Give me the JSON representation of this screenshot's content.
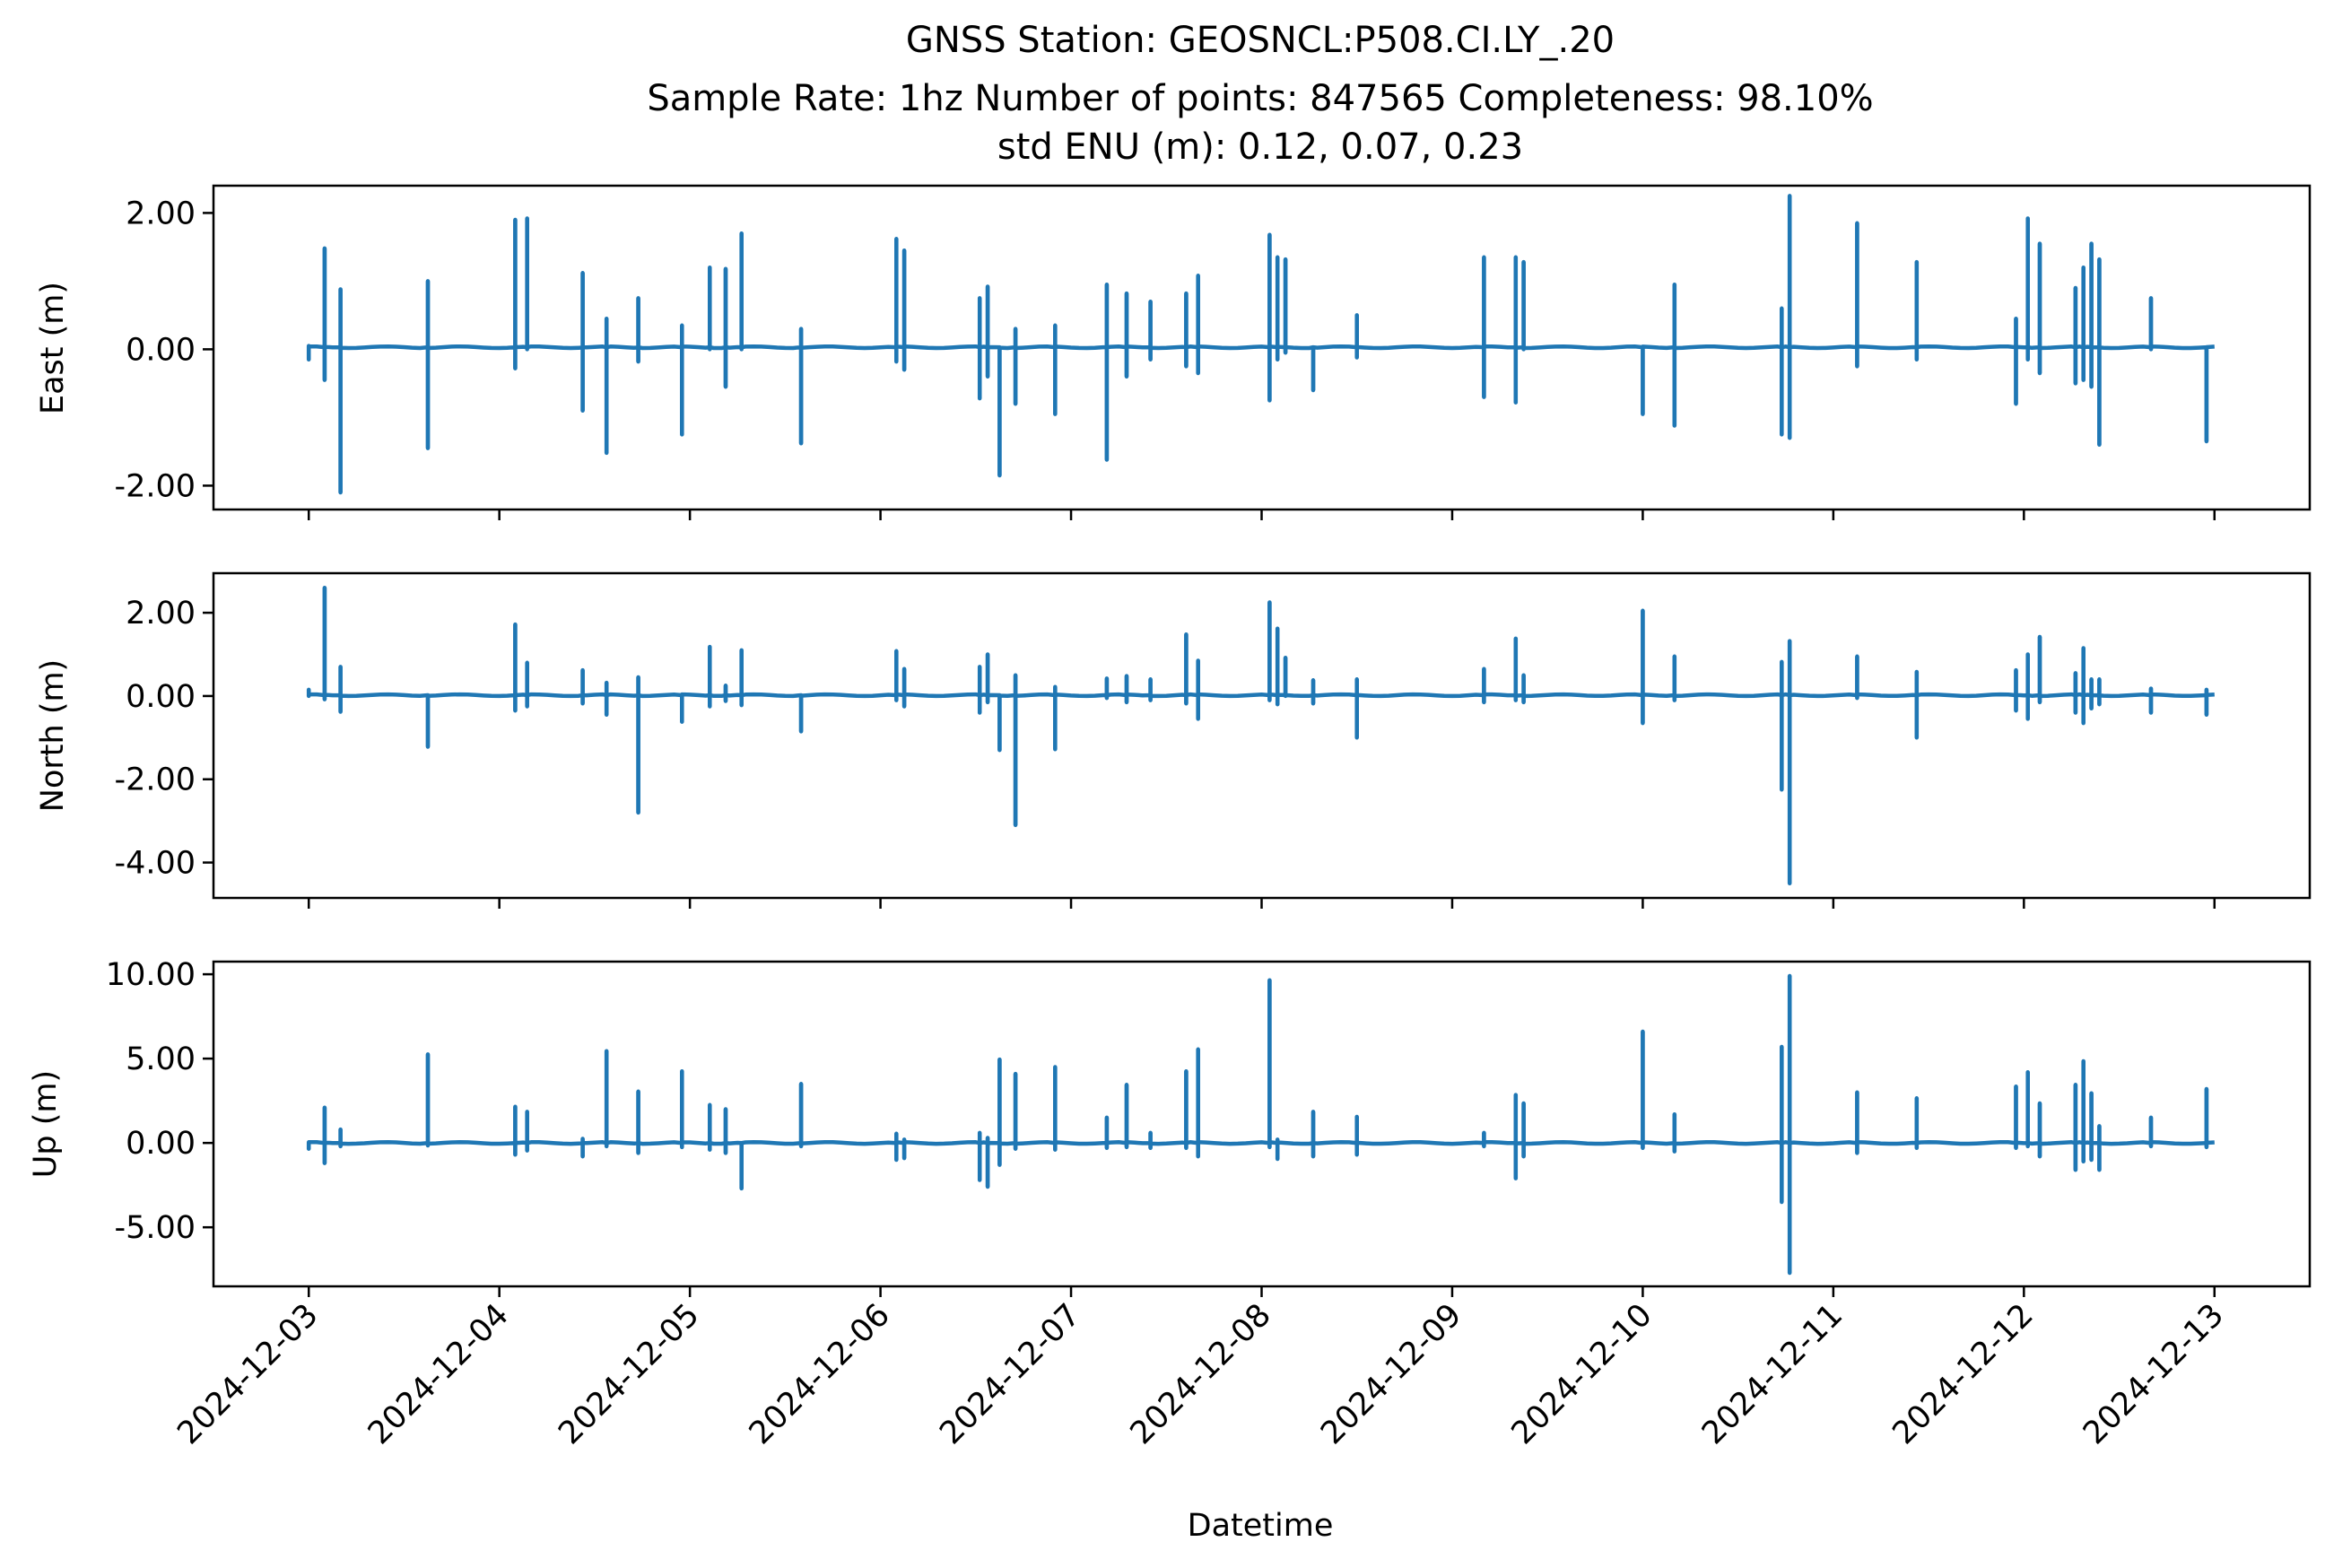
{
  "figure": {
    "title_line1": "GNSS Station: GEOSNCL:P508.CI.LY_.20",
    "title_line2": "Sample Rate: 1hz   Number of points: 847565    Completeness:  98.10%",
    "title_line3": "std ENU (m):  0.12, 0.07, 0.23",
    "xlabel": "Datetime",
    "line_color": "#1f77b4"
  },
  "chart_data": [
    {
      "type": "line",
      "ylabel": "East (m)",
      "xlim": [
        "2024-12-02T12:00",
        "2024-12-13T12:00"
      ],
      "ylim": [
        -2.35,
        2.4
      ],
      "yticks": [
        -2.0,
        0.0,
        2.0
      ],
      "ytick_labels": [
        "-2.00",
        "0.00",
        "2.00"
      ],
      "xtick_labels_shown": false,
      "baseline": 0.03,
      "series": [
        {
          "spikes": [
            [
              "2024-12-03T00:00",
              0.05,
              -0.15
            ],
            [
              "2024-12-03T02:00",
              1.48,
              -0.45
            ],
            [
              "2024-12-03T04:00",
              0.88,
              -2.1
            ],
            [
              "2024-12-03T15:00",
              1.0,
              -1.45
            ],
            [
              "2024-12-04T02:00",
              1.9,
              -0.28
            ],
            [
              "2024-12-04T03:30",
              1.92,
              0.0
            ],
            [
              "2024-12-04T10:30",
              1.12,
              -0.9
            ],
            [
              "2024-12-04T13:30",
              0.45,
              -1.52
            ],
            [
              "2024-12-04T17:30",
              0.75,
              -0.18
            ],
            [
              "2024-12-04T23:00",
              0.35,
              -1.25
            ],
            [
              "2024-12-05T02:30",
              1.2,
              0.0
            ],
            [
              "2024-12-05T04:30",
              1.18,
              -0.55
            ],
            [
              "2024-12-05T06:30",
              1.7,
              0.0
            ],
            [
              "2024-12-05T14:00",
              0.3,
              -1.38
            ],
            [
              "2024-12-06T02:00",
              1.62,
              -0.18
            ],
            [
              "2024-12-06T03:00",
              1.45,
              -0.3
            ],
            [
              "2024-12-06T12:30",
              0.75,
              -0.72
            ],
            [
              "2024-12-06T13:30",
              0.92,
              -0.4
            ],
            [
              "2024-12-06T15:00",
              0.0,
              -1.85
            ],
            [
              "2024-12-06T17:00",
              0.3,
              -0.8
            ],
            [
              "2024-12-06T22:00",
              0.35,
              -0.95
            ],
            [
              "2024-12-07T04:30",
              0.95,
              -1.62
            ],
            [
              "2024-12-07T07:00",
              0.82,
              -0.4
            ],
            [
              "2024-12-07T10:00",
              0.7,
              -0.15
            ],
            [
              "2024-12-07T14:30",
              0.82,
              -0.25
            ],
            [
              "2024-12-07T16:00",
              1.08,
              -0.35
            ],
            [
              "2024-12-08T01:00",
              1.68,
              -0.75
            ],
            [
              "2024-12-08T02:00",
              1.35,
              -0.15
            ],
            [
              "2024-12-08T03:00",
              1.32,
              -0.05
            ],
            [
              "2024-12-08T06:30",
              0.0,
              -0.6
            ],
            [
              "2024-12-08T12:00",
              0.5,
              -0.12
            ],
            [
              "2024-12-09T04:00",
              1.35,
              -0.7
            ],
            [
              "2024-12-09T08:00",
              1.35,
              -0.78
            ],
            [
              "2024-12-09T09:00",
              1.28,
              0.0
            ],
            [
              "2024-12-10T00:00",
              0.0,
              -0.95
            ],
            [
              "2024-12-10T04:00",
              0.95,
              -1.12
            ],
            [
              "2024-12-10T17:30",
              0.6,
              -1.25
            ],
            [
              "2024-12-10T18:30",
              2.25,
              -1.3
            ],
            [
              "2024-12-11T03:00",
              1.85,
              -0.25
            ],
            [
              "2024-12-11T10:30",
              1.28,
              -0.15
            ],
            [
              "2024-12-11T23:00",
              0.45,
              -0.8
            ],
            [
              "2024-12-12T00:30",
              1.92,
              -0.15
            ],
            [
              "2024-12-12T02:00",
              1.55,
              -0.35
            ],
            [
              "2024-12-12T06:30",
              0.9,
              -0.5
            ],
            [
              "2024-12-12T07:30",
              1.2,
              -0.45
            ],
            [
              "2024-12-12T08:30",
              1.55,
              -0.55
            ],
            [
              "2024-12-12T09:30",
              1.32,
              -1.4
            ],
            [
              "2024-12-12T16:00",
              0.75,
              0.0
            ],
            [
              "2024-12-12T23:00",
              0.0,
              -1.35
            ]
          ]
        }
      ]
    },
    {
      "type": "line",
      "ylabel": "North (m)",
      "xlim": [
        "2024-12-02T12:00",
        "2024-12-13T12:00"
      ],
      "ylim": [
        -4.85,
        2.95
      ],
      "yticks": [
        -4.0,
        -2.0,
        0.0,
        2.0
      ],
      "ytick_labels": [
        "-4.00",
        "-2.00",
        "0.00",
        "2.00"
      ],
      "xtick_labels_shown": false,
      "baseline": 0.02,
      "series": [
        {
          "spikes": [
            [
              "2024-12-03T00:00",
              0.15,
              0.0
            ],
            [
              "2024-12-03T02:00",
              2.6,
              -0.08
            ],
            [
              "2024-12-03T04:00",
              0.7,
              -0.38
            ],
            [
              "2024-12-03T15:00",
              0.0,
              -1.22
            ],
            [
              "2024-12-04T02:00",
              1.72,
              -0.35
            ],
            [
              "2024-12-04T03:30",
              0.8,
              -0.25
            ],
            [
              "2024-12-04T10:30",
              0.62,
              -0.18
            ],
            [
              "2024-12-04T13:30",
              0.32,
              -0.45
            ],
            [
              "2024-12-04T17:30",
              0.45,
              -2.8
            ],
            [
              "2024-12-04T23:00",
              0.0,
              -0.62
            ],
            [
              "2024-12-05T02:30",
              1.18,
              -0.25
            ],
            [
              "2024-12-05T04:30",
              0.25,
              -0.12
            ],
            [
              "2024-12-05T06:30",
              1.1,
              -0.22
            ],
            [
              "2024-12-05T14:00",
              0.0,
              -0.85
            ],
            [
              "2024-12-06T02:00",
              1.08,
              -0.1
            ],
            [
              "2024-12-06T03:00",
              0.65,
              -0.25
            ],
            [
              "2024-12-06T12:30",
              0.7,
              -0.4
            ],
            [
              "2024-12-06T13:30",
              1.0,
              -0.15
            ],
            [
              "2024-12-06T15:00",
              0.0,
              -1.3
            ],
            [
              "2024-12-06T17:00",
              0.5,
              -3.1
            ],
            [
              "2024-12-06T22:00",
              0.22,
              -1.28
            ],
            [
              "2024-12-07T04:30",
              0.42,
              -0.05
            ],
            [
              "2024-12-07T07:00",
              0.48,
              -0.15
            ],
            [
              "2024-12-07T10:00",
              0.4,
              -0.1
            ],
            [
              "2024-12-07T14:30",
              1.48,
              -0.18
            ],
            [
              "2024-12-07T16:00",
              0.85,
              -0.55
            ],
            [
              "2024-12-08T01:00",
              2.25,
              -0.1
            ],
            [
              "2024-12-08T02:00",
              1.62,
              -0.2
            ],
            [
              "2024-12-08T03:00",
              0.92,
              0.0
            ],
            [
              "2024-12-08T06:30",
              0.38,
              -0.18
            ],
            [
              "2024-12-08T12:00",
              0.4,
              -1.0
            ],
            [
              "2024-12-09T04:00",
              0.65,
              -0.15
            ],
            [
              "2024-12-09T08:00",
              1.38,
              -0.1
            ],
            [
              "2024-12-09T09:00",
              0.5,
              -0.15
            ],
            [
              "2024-12-10T00:00",
              2.05,
              -0.65
            ],
            [
              "2024-12-10T04:00",
              0.95,
              -0.1
            ],
            [
              "2024-12-10T17:30",
              0.82,
              -2.25
            ],
            [
              "2024-12-10T18:30",
              1.32,
              -4.5
            ],
            [
              "2024-12-11T03:00",
              0.95,
              -0.05
            ],
            [
              "2024-12-11T10:30",
              0.58,
              -1.0
            ],
            [
              "2024-12-11T23:00",
              0.62,
              -0.35
            ],
            [
              "2024-12-12T00:30",
              1.0,
              -0.55
            ],
            [
              "2024-12-12T02:00",
              1.42,
              -0.15
            ],
            [
              "2024-12-12T06:30",
              0.55,
              -0.4
            ],
            [
              "2024-12-12T07:30",
              1.15,
              -0.65
            ],
            [
              "2024-12-12T08:30",
              0.4,
              -0.3
            ],
            [
              "2024-12-12T09:30",
              0.4,
              -0.2
            ],
            [
              "2024-12-12T16:00",
              0.18,
              -0.4
            ],
            [
              "2024-12-12T23:00",
              0.15,
              -0.45
            ]
          ]
        }
      ]
    },
    {
      "type": "line",
      "ylabel": "Up (m)",
      "xlim": [
        "2024-12-02T12:00",
        "2024-12-13T12:00"
      ],
      "ylim": [
        -8.5,
        10.75
      ],
      "yticks": [
        -5.0,
        0.0,
        5.0,
        10.0
      ],
      "ytick_labels": [
        "-5.00",
        "0.00",
        "5.00",
        "10.00"
      ],
      "xticks": [
        "2024-12-03",
        "2024-12-04",
        "2024-12-05",
        "2024-12-06",
        "2024-12-07",
        "2024-12-08",
        "2024-12-09",
        "2024-12-10",
        "2024-12-11",
        "2024-12-12",
        "2024-12-13"
      ],
      "xtick_labels_shown": true,
      "baseline": 0.0,
      "series": [
        {
          "spikes": [
            [
              "2024-12-03T00:00",
              0.0,
              -0.35
            ],
            [
              "2024-12-03T02:00",
              2.1,
              -1.2
            ],
            [
              "2024-12-03T04:00",
              0.8,
              -0.2
            ],
            [
              "2024-12-03T15:00",
              5.25,
              -0.15
            ],
            [
              "2024-12-04T02:00",
              2.15,
              -0.7
            ],
            [
              "2024-12-04T03:30",
              1.85,
              -0.45
            ],
            [
              "2024-12-04T10:30",
              0.25,
              -0.8
            ],
            [
              "2024-12-04T13:30",
              5.45,
              -0.2
            ],
            [
              "2024-12-04T17:30",
              3.05,
              -0.6
            ],
            [
              "2024-12-04T23:00",
              4.25,
              -0.25
            ],
            [
              "2024-12-05T02:30",
              2.25,
              -0.4
            ],
            [
              "2024-12-05T04:30",
              2.0,
              -0.6
            ],
            [
              "2024-12-05T06:30",
              0.0,
              -2.7
            ],
            [
              "2024-12-05T14:00",
              3.5,
              -0.2
            ],
            [
              "2024-12-06T02:00",
              0.55,
              -1.0
            ],
            [
              "2024-12-06T03:00",
              0.2,
              -0.9
            ],
            [
              "2024-12-06T12:30",
              0.6,
              -2.2
            ],
            [
              "2024-12-06T13:30",
              0.3,
              -2.6
            ],
            [
              "2024-12-06T15:00",
              4.95,
              -1.3
            ],
            [
              "2024-12-06T17:00",
              4.1,
              -0.35
            ],
            [
              "2024-12-06T22:00",
              4.5,
              -0.4
            ],
            [
              "2024-12-07T04:30",
              1.5,
              -0.3
            ],
            [
              "2024-12-07T07:00",
              3.45,
              -0.25
            ],
            [
              "2024-12-07T10:00",
              0.6,
              -0.3
            ],
            [
              "2024-12-07T14:30",
              4.25,
              -0.3
            ],
            [
              "2024-12-07T16:00",
              5.55,
              -0.8
            ],
            [
              "2024-12-08T01:00",
              9.65,
              -0.25
            ],
            [
              "2024-12-08T02:00",
              0.2,
              -0.95
            ],
            [
              "2024-12-08T06:30",
              1.85,
              -0.8
            ],
            [
              "2024-12-08T12:00",
              1.55,
              -0.7
            ],
            [
              "2024-12-09T04:00",
              0.6,
              -0.2
            ],
            [
              "2024-12-09T08:00",
              2.85,
              -2.1
            ],
            [
              "2024-12-09T09:00",
              2.35,
              -0.8
            ],
            [
              "2024-12-10T00:00",
              6.6,
              -0.3
            ],
            [
              "2024-12-10T04:00",
              1.7,
              -0.5
            ],
            [
              "2024-12-10T17:30",
              5.7,
              -3.5
            ],
            [
              "2024-12-10T18:30",
              9.9,
              -7.7
            ],
            [
              "2024-12-11T03:00",
              3.0,
              -0.6
            ],
            [
              "2024-12-11T10:30",
              2.65,
              -0.3
            ],
            [
              "2024-12-11T23:00",
              3.35,
              -0.3
            ],
            [
              "2024-12-12T00:30",
              4.2,
              -0.2
            ],
            [
              "2024-12-12T02:00",
              2.35,
              -0.8
            ],
            [
              "2024-12-12T06:30",
              3.45,
              -1.6
            ],
            [
              "2024-12-12T07:30",
              4.85,
              -1.1
            ],
            [
              "2024-12-12T08:30",
              2.95,
              -1.0
            ],
            [
              "2024-12-12T09:30",
              1.0,
              -1.6
            ],
            [
              "2024-12-12T16:00",
              1.5,
              -0.2
            ],
            [
              "2024-12-12T23:00",
              3.2,
              -0.25
            ]
          ]
        }
      ]
    }
  ]
}
